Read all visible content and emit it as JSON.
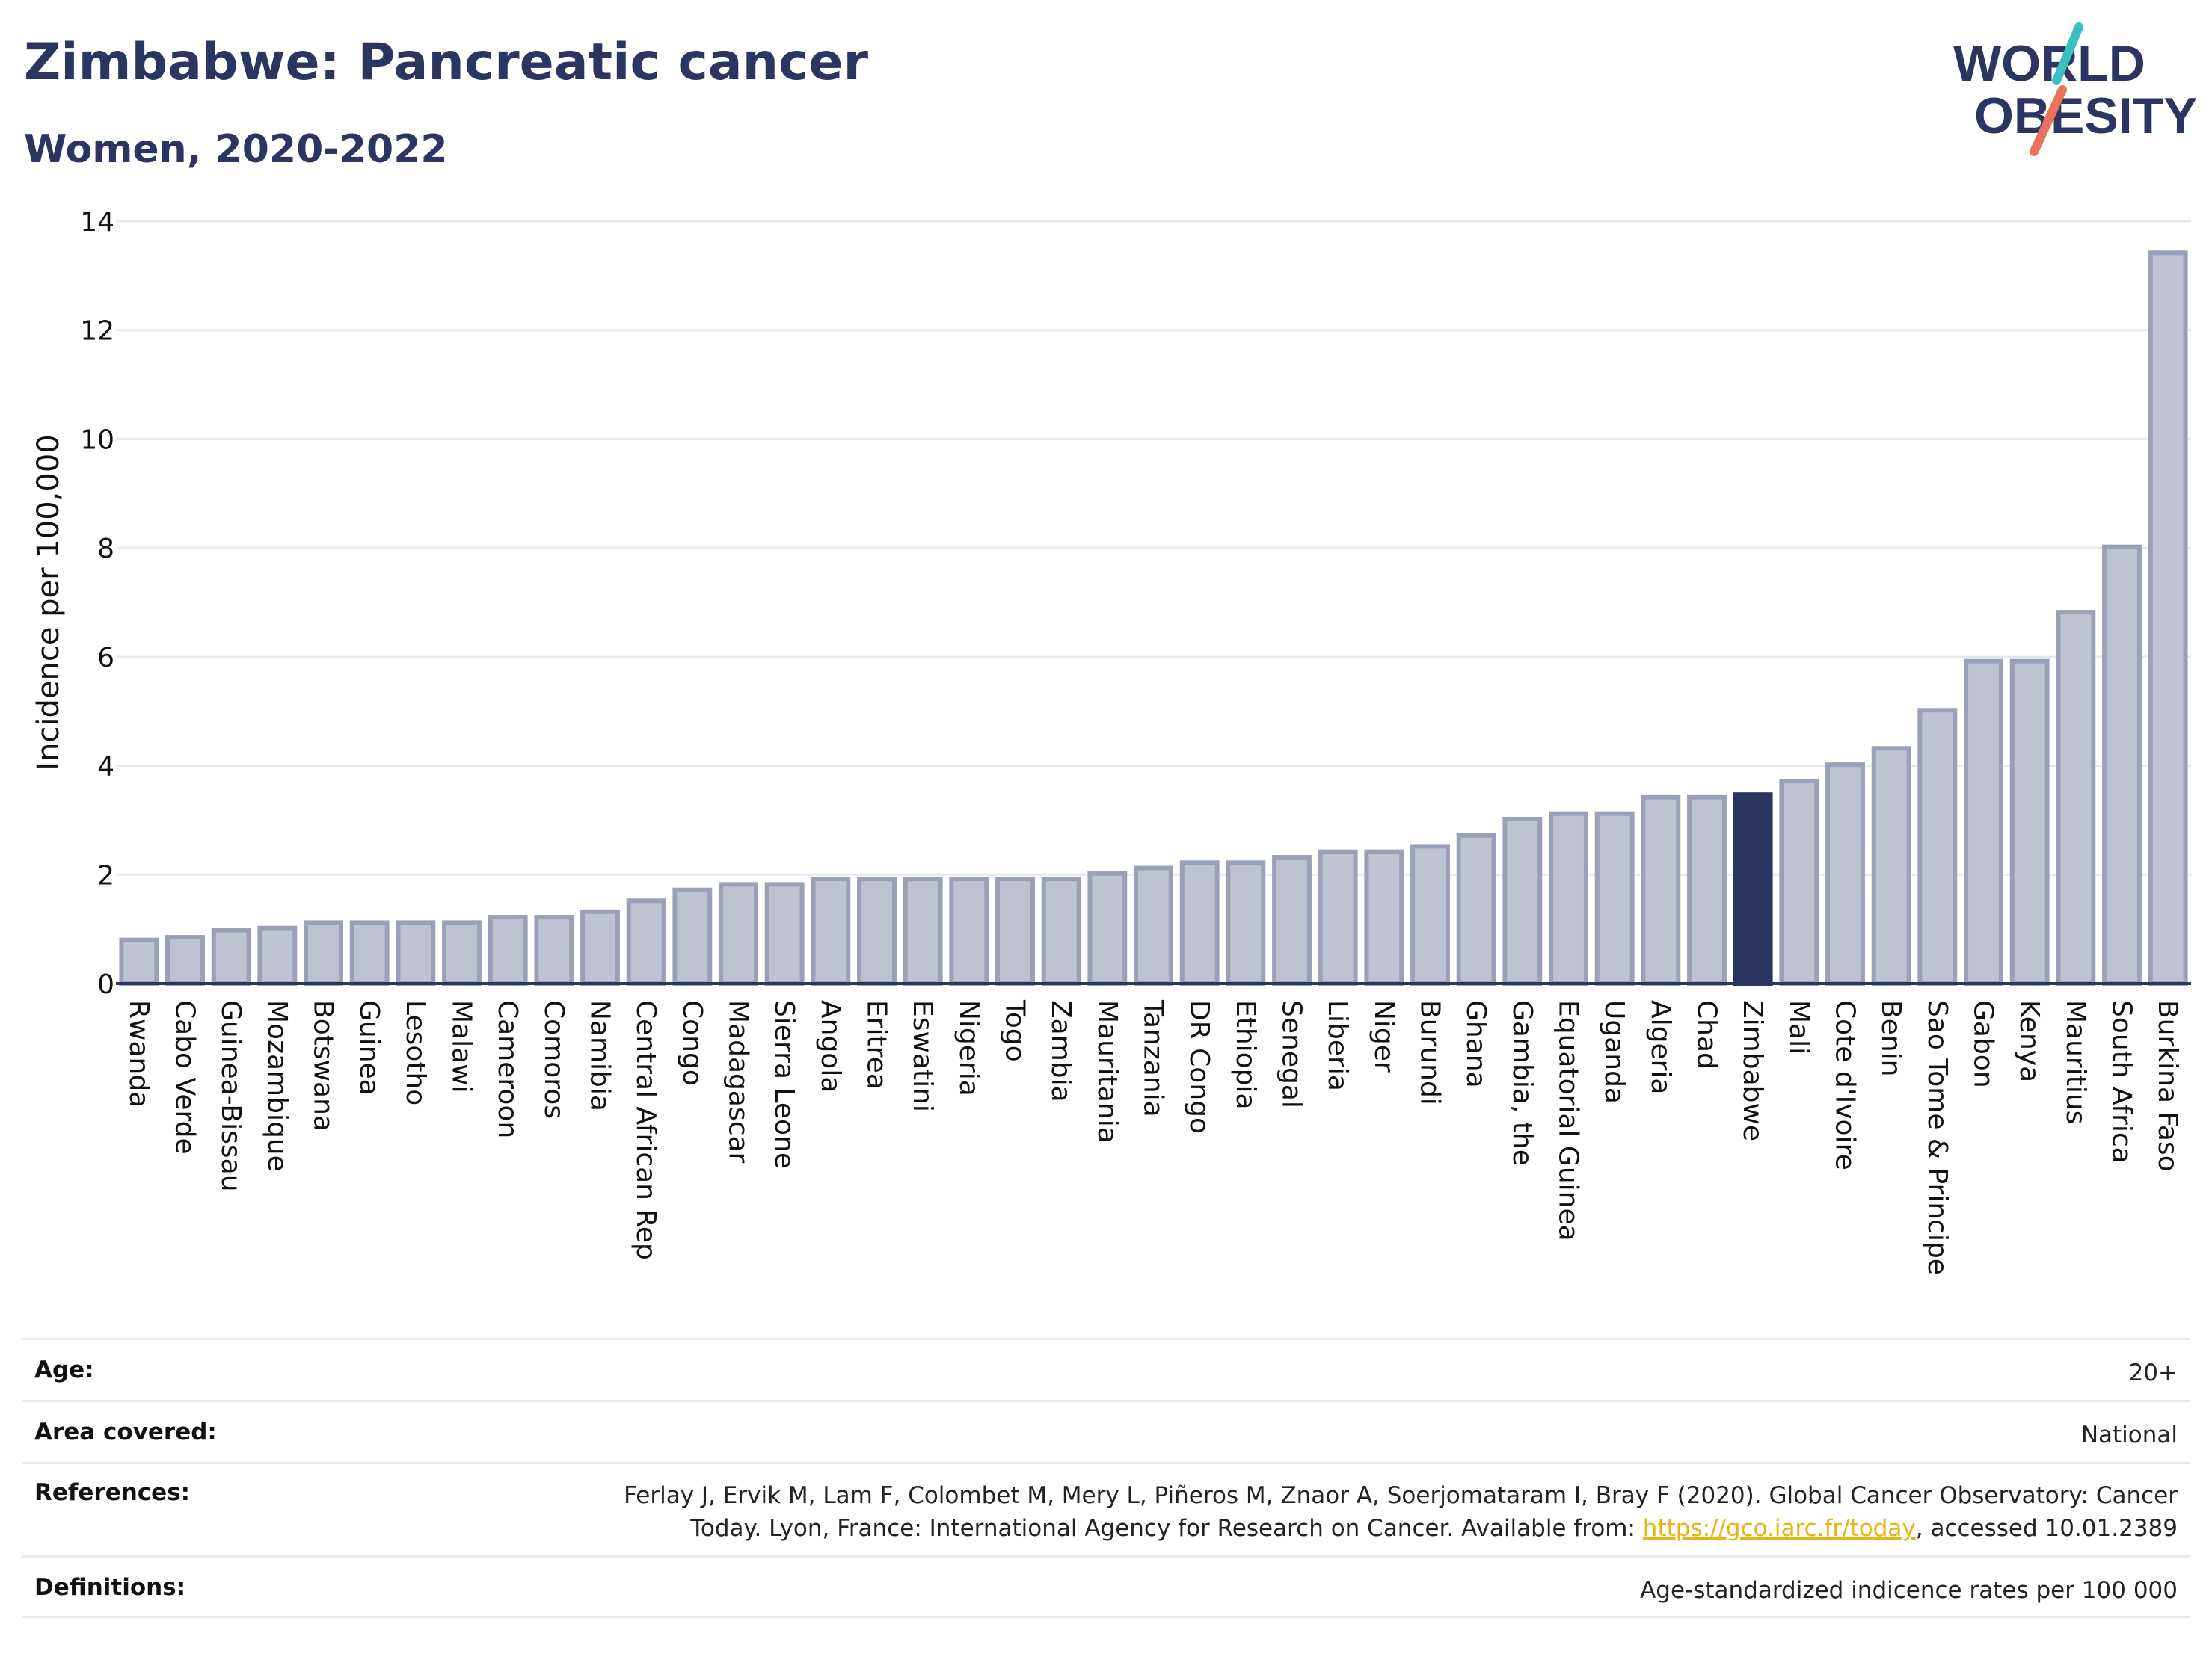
{
  "header": {
    "title": "Zimbabwe: Pancreatic cancer",
    "subtitle": "Women, 2020-2022"
  },
  "logo": {
    "line1": "WORLD",
    "line2": "OBESITY",
    "accent_teal": "#3bbfbf",
    "accent_coral": "#e8735a",
    "text_color": "#2b3560"
  },
  "colors": {
    "bar_fill": "#bfc3d1",
    "bar_stroke": "#9aa0b8",
    "highlight_fill": "#2b3560",
    "grid": "#e6e9ef",
    "axis": "#2b3560"
  },
  "chart_data": {
    "type": "bar",
    "ylabel": "Incidence per 100,000",
    "ylim": [
      0,
      14
    ],
    "yticks": [
      0,
      2,
      4,
      6,
      8,
      10,
      12,
      14
    ],
    "grid": true,
    "highlight": "Zimbabwe",
    "categories": [
      "Rwanda",
      "Cabo Verde",
      "Guinea-Bissau",
      "Mozambique",
      "Botswana",
      "Guinea",
      "Lesotho",
      "Malawi",
      "Cameroon",
      "Comoros",
      "Namibia",
      "Central African Rep",
      "Congo",
      "Madagascar",
      "Sierra Leone",
      "Angola",
      "Eritrea",
      "Eswatini",
      "Nigeria",
      "Togo",
      "Zambia",
      "Mauritania",
      "Tanzania",
      "DR Congo",
      "Ethiopia",
      "Senegal",
      "Liberia",
      "Niger",
      "Burundi",
      "Ghana",
      "Gambia, the",
      "Equatorial Guinea",
      "Uganda",
      "Algeria",
      "Chad",
      "Zimbabwe",
      "Mali",
      "Cote d'Ivoire",
      "Benin",
      "Sao Tome & Principe",
      "Gabon",
      "Kenya",
      "Mauritius",
      "South Africa",
      "Burkina Faso"
    ],
    "values": [
      0.8,
      0.85,
      0.98,
      1.02,
      1.12,
      1.12,
      1.12,
      1.12,
      1.22,
      1.22,
      1.32,
      1.52,
      1.72,
      1.82,
      1.82,
      1.92,
      1.92,
      1.92,
      1.92,
      1.92,
      1.92,
      2.02,
      2.12,
      2.22,
      2.22,
      2.32,
      2.42,
      2.42,
      2.52,
      2.72,
      3.02,
      3.12,
      3.12,
      3.42,
      3.42,
      3.47,
      3.72,
      4.02,
      4.32,
      5.02,
      5.92,
      5.92,
      6.82,
      8.02,
      13.42
    ]
  },
  "info": {
    "age_label": "Age:",
    "age_value": "20+",
    "area_label": "Area covered:",
    "area_value": "National",
    "refs_label": "References:",
    "refs_line1": "Ferlay J, Ervik M, Lam F, Colombet M, Mery L, Piñeros M, Znaor A, Soerjomataram I, Bray F (2020). Global Cancer Observatory: Cancer",
    "refs_line2_pre": "Today. Lyon, France: International Agency for Research on Cancer. Available from: ",
    "refs_link": "https://gco.iarc.fr/today",
    "refs_line2_post": ", accessed 10.01.2389",
    "defs_label": "Definitions:",
    "defs_value": "Age-standardized indicence rates per 100 000"
  }
}
